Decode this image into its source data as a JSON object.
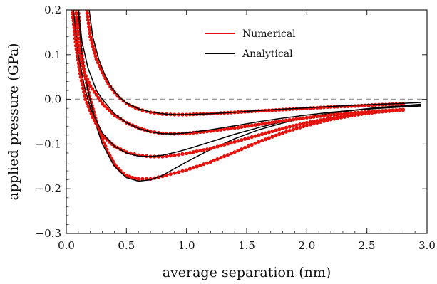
{
  "chart_data": {
    "type": "scatter",
    "xlabel": "average separation (nm)",
    "ylabel": "applied pressure (GPa)",
    "xlim": [
      0.0,
      3.0
    ],
    "ylim": [
      -0.3,
      0.2
    ],
    "xticks": [
      0.0,
      0.5,
      1.0,
      1.5,
      2.0,
      2.5,
      3.0
    ],
    "xtick_labels": [
      "0.0",
      "0.5",
      "1.0",
      "1.5",
      "2.0",
      "2.5",
      "3.0"
    ],
    "yticks": [
      -0.3,
      -0.2,
      -0.1,
      0.0,
      0.1,
      0.2
    ],
    "ytick_labels": [
      "−0.3",
      "−0.2",
      "−0.1",
      "0.0",
      "0.1",
      "0.2"
    ],
    "reference_line": {
      "y": 0.0,
      "style": "dashed",
      "color": "#999999"
    },
    "legend": {
      "placement": "top-center",
      "entries": [
        {
          "label": "Numerical",
          "color": "#e8120c"
        },
        {
          "label": "Analytical",
          "color": "#000000"
        }
      ]
    },
    "series": [
      {
        "numerical": [
          [
            0.1,
            0.2
          ],
          [
            0.12,
            0.12
          ],
          [
            0.15,
            0.06
          ],
          [
            0.2,
            0.0
          ],
          [
            0.25,
            -0.05
          ],
          [
            0.3,
            -0.09
          ],
          [
            0.35,
            -0.12
          ],
          [
            0.4,
            -0.145
          ],
          [
            0.45,
            -0.16
          ],
          [
            0.5,
            -0.17
          ],
          [
            0.55,
            -0.175
          ],
          [
            0.6,
            -0.178
          ],
          [
            0.7,
            -0.178
          ],
          [
            0.8,
            -0.172
          ],
          [
            0.9,
            -0.165
          ],
          [
            1.0,
            -0.158
          ],
          [
            1.2,
            -0.14
          ],
          [
            1.4,
            -0.118
          ],
          [
            1.6,
            -0.095
          ],
          [
            1.8,
            -0.075
          ],
          [
            2.0,
            -0.058
          ],
          [
            2.2,
            -0.045
          ],
          [
            2.4,
            -0.035
          ],
          [
            2.6,
            -0.028
          ],
          [
            2.8,
            -0.023
          ]
        ],
        "analytical": [
          [
            0.1,
            0.2
          ],
          [
            0.13,
            0.1
          ],
          [
            0.18,
            0.02
          ],
          [
            0.25,
            -0.06
          ],
          [
            0.3,
            -0.1
          ],
          [
            0.4,
            -0.15
          ],
          [
            0.5,
            -0.175
          ],
          [
            0.6,
            -0.183
          ],
          [
            0.7,
            -0.18
          ],
          [
            0.8,
            -0.17
          ],
          [
            0.9,
            -0.155
          ],
          [
            1.0,
            -0.14
          ],
          [
            1.2,
            -0.112
          ],
          [
            1.4,
            -0.088
          ],
          [
            1.6,
            -0.068
          ],
          [
            1.8,
            -0.053
          ],
          [
            2.0,
            -0.04
          ],
          [
            2.2,
            -0.031
          ],
          [
            2.4,
            -0.024
          ],
          [
            2.6,
            -0.018
          ],
          [
            2.8,
            -0.014
          ],
          [
            2.95,
            -0.011
          ]
        ]
      },
      {
        "numerical": [
          [
            0.05,
            0.2
          ],
          [
            0.08,
            0.12
          ],
          [
            0.12,
            0.05
          ],
          [
            0.16,
            0.0
          ],
          [
            0.22,
            -0.04
          ],
          [
            0.3,
            -0.08
          ],
          [
            0.4,
            -0.105
          ],
          [
            0.5,
            -0.118
          ],
          [
            0.6,
            -0.125
          ],
          [
            0.7,
            -0.128
          ],
          [
            0.8,
            -0.128
          ],
          [
            0.9,
            -0.125
          ],
          [
            1.0,
            -0.121
          ],
          [
            1.2,
            -0.11
          ],
          [
            1.4,
            -0.095
          ],
          [
            1.6,
            -0.08
          ],
          [
            1.8,
            -0.065
          ],
          [
            2.0,
            -0.052
          ],
          [
            2.2,
            -0.042
          ],
          [
            2.4,
            -0.034
          ],
          [
            2.6,
            -0.028
          ],
          [
            2.8,
            -0.024
          ]
        ],
        "analytical": [
          [
            0.06,
            0.2
          ],
          [
            0.1,
            0.1
          ],
          [
            0.15,
            0.03
          ],
          [
            0.2,
            -0.02
          ],
          [
            0.3,
            -0.075
          ],
          [
            0.4,
            -0.105
          ],
          [
            0.5,
            -0.12
          ],
          [
            0.6,
            -0.127
          ],
          [
            0.7,
            -0.128
          ],
          [
            0.8,
            -0.125
          ],
          [
            0.9,
            -0.119
          ],
          [
            1.0,
            -0.112
          ],
          [
            1.2,
            -0.095
          ],
          [
            1.4,
            -0.078
          ],
          [
            1.6,
            -0.063
          ],
          [
            1.8,
            -0.05
          ],
          [
            2.0,
            -0.04
          ],
          [
            2.2,
            -0.031
          ],
          [
            2.4,
            -0.024
          ],
          [
            2.6,
            -0.019
          ],
          [
            2.8,
            -0.015
          ],
          [
            2.95,
            -0.013
          ]
        ]
      },
      {
        "numerical": [
          [
            0.08,
            0.2
          ],
          [
            0.1,
            0.12
          ],
          [
            0.15,
            0.06
          ],
          [
            0.2,
            0.03
          ],
          [
            0.3,
            -0.01
          ],
          [
            0.4,
            -0.035
          ],
          [
            0.5,
            -0.052
          ],
          [
            0.6,
            -0.064
          ],
          [
            0.7,
            -0.072
          ],
          [
            0.8,
            -0.076
          ],
          [
            0.9,
            -0.077
          ],
          [
            1.0,
            -0.076
          ],
          [
            1.2,
            -0.071
          ],
          [
            1.4,
            -0.064
          ],
          [
            1.6,
            -0.056
          ],
          [
            1.8,
            -0.048
          ],
          [
            2.0,
            -0.041
          ],
          [
            2.2,
            -0.035
          ],
          [
            2.4,
            -0.03
          ],
          [
            2.6,
            -0.026
          ],
          [
            2.8,
            -0.023
          ]
        ],
        "analytical": [
          [
            0.1,
            0.2
          ],
          [
            0.13,
            0.13
          ],
          [
            0.18,
            0.07
          ],
          [
            0.25,
            0.02
          ],
          [
            0.3,
            0.0
          ],
          [
            0.4,
            -0.032
          ],
          [
            0.5,
            -0.052
          ],
          [
            0.6,
            -0.065
          ],
          [
            0.7,
            -0.073
          ],
          [
            0.8,
            -0.077
          ],
          [
            0.9,
            -0.077
          ],
          [
            1.0,
            -0.075
          ],
          [
            1.2,
            -0.068
          ],
          [
            1.4,
            -0.059
          ],
          [
            1.6,
            -0.05
          ],
          [
            1.8,
            -0.042
          ],
          [
            2.0,
            -0.035
          ],
          [
            2.2,
            -0.029
          ],
          [
            2.4,
            -0.024
          ],
          [
            2.6,
            -0.02
          ],
          [
            2.8,
            -0.017
          ],
          [
            2.95,
            -0.015
          ]
        ]
      },
      {
        "numerical": [
          [
            0.17,
            0.2
          ],
          [
            0.2,
            0.14
          ],
          [
            0.25,
            0.09
          ],
          [
            0.3,
            0.06
          ],
          [
            0.35,
            0.035
          ],
          [
            0.4,
            0.016
          ],
          [
            0.45,
            0.002
          ],
          [
            0.5,
            -0.009
          ],
          [
            0.6,
            -0.022
          ],
          [
            0.7,
            -0.029
          ],
          [
            0.8,
            -0.033
          ],
          [
            0.9,
            -0.034
          ],
          [
            1.0,
            -0.034
          ],
          [
            1.2,
            -0.032
          ],
          [
            1.4,
            -0.029
          ],
          [
            1.6,
            -0.026
          ],
          [
            1.8,
            -0.023
          ],
          [
            2.0,
            -0.02
          ],
          [
            2.2,
            -0.017
          ],
          [
            2.4,
            -0.015
          ],
          [
            2.6,
            -0.012
          ],
          [
            2.8,
            -0.01
          ]
        ],
        "analytical": [
          [
            0.19,
            0.2
          ],
          [
            0.22,
            0.14
          ],
          [
            0.27,
            0.09
          ],
          [
            0.32,
            0.055
          ],
          [
            0.38,
            0.025
          ],
          [
            0.45,
            0.003
          ],
          [
            0.5,
            -0.008
          ],
          [
            0.6,
            -0.021
          ],
          [
            0.7,
            -0.028
          ],
          [
            0.8,
            -0.032
          ],
          [
            0.9,
            -0.034
          ],
          [
            1.0,
            -0.034
          ],
          [
            1.2,
            -0.032
          ],
          [
            1.4,
            -0.029
          ],
          [
            1.6,
            -0.025
          ],
          [
            1.8,
            -0.022
          ],
          [
            2.0,
            -0.019
          ],
          [
            2.2,
            -0.016
          ],
          [
            2.4,
            -0.013
          ],
          [
            2.6,
            -0.011
          ],
          [
            2.8,
            -0.009
          ],
          [
            2.95,
            -0.007
          ]
        ]
      }
    ]
  }
}
